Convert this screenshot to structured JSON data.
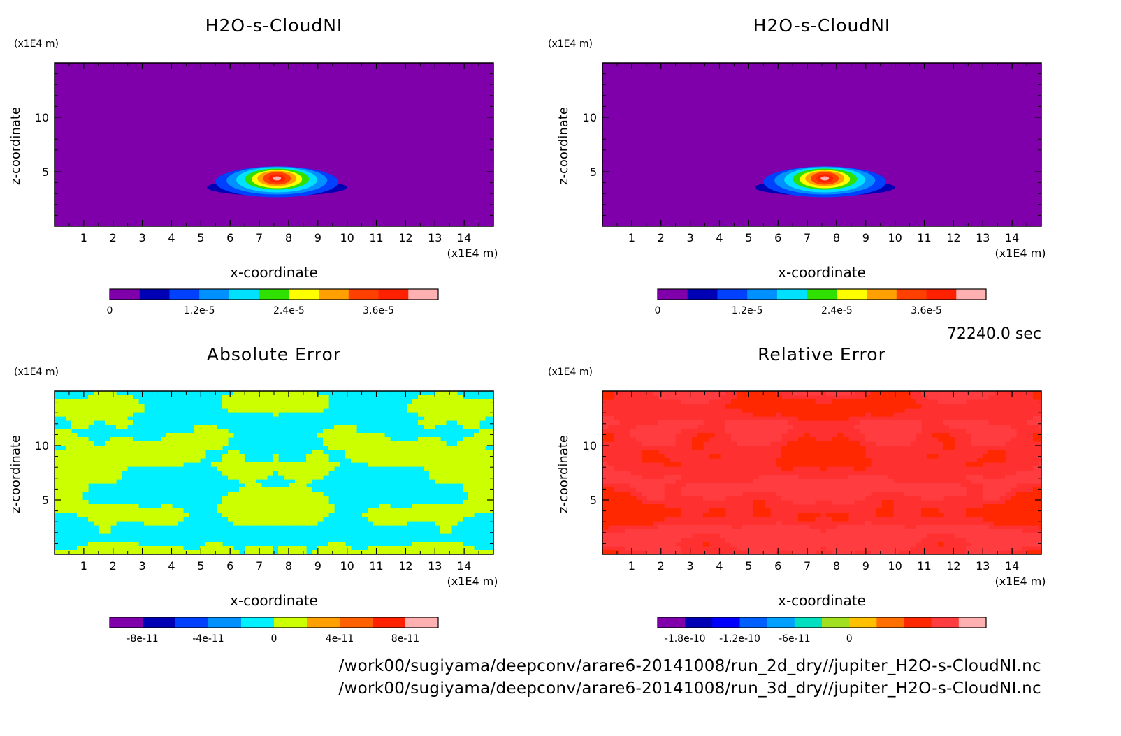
{
  "footer": {
    "file_1": "/work00/sugiyama/deepconv/arare6-20141008/run_2d_dry//jupiter_H2O-s-CloudNI.nc",
    "file_2": "/work00/sugiyama/deepconv/arare6-20141008/run_3d_dry//jupiter_H2O-s-CloudNI.nc"
  },
  "time_label": "72240.0 sec",
  "chart_data": [
    {
      "type": "heatmap",
      "title": "H2O-s-CloudNI",
      "xlabel": "x-coordinate",
      "ylabel": "z-coordinate",
      "x_unit": "(x1E4 m)",
      "y_unit": "(x1E4 m)",
      "xlim": [
        0,
        15
      ],
      "ylim": [
        0,
        15
      ],
      "x_ticks": [
        "1",
        "2",
        "3",
        "4",
        "5",
        "6",
        "7",
        "8",
        "9",
        "10",
        "11",
        "12",
        "13",
        "14"
      ],
      "y_ticks": [
        "5",
        "10"
      ],
      "field": "cloud",
      "blob_center": [
        7.6,
        4.2
      ],
      "max_value": 4.1e-05,
      "colorbar": {
        "colors": [
          "#7f00aa",
          "#0000b4",
          "#0040ff",
          "#0090ff",
          "#00e0ff",
          "#30e000",
          "#ffff00",
          "#ffa000",
          "#ff4000",
          "#ff2000",
          "#ffb0b0"
        ],
        "levels": [
          0,
          4e-06,
          8e-06,
          1.2e-05,
          1.6e-05,
          2e-05,
          2.4e-05,
          2.8e-05,
          3.2e-05,
          3.6e-05,
          4e-05
        ],
        "tick_labels": [
          {
            "v": 0,
            "t": "0"
          },
          {
            "v": 1.2e-05,
            "t": "1.2e-5"
          },
          {
            "v": 2.4e-05,
            "t": "2.4e-5"
          },
          {
            "v": 3.6e-05,
            "t": "3.6e-5"
          }
        ]
      }
    },
    {
      "type": "heatmap",
      "title": "H2O-s-CloudNI",
      "xlabel": "x-coordinate",
      "ylabel": "z-coordinate",
      "x_unit": "(x1E4 m)",
      "y_unit": "(x1E4 m)",
      "xlim": [
        0,
        15
      ],
      "ylim": [
        0,
        15
      ],
      "x_ticks": [
        "1",
        "2",
        "3",
        "4",
        "5",
        "6",
        "7",
        "8",
        "9",
        "10",
        "11",
        "12",
        "13",
        "14"
      ],
      "y_ticks": [
        "5",
        "10"
      ],
      "field": "cloud",
      "blob_center": [
        7.6,
        4.2
      ],
      "max_value": 4.1e-05,
      "colorbar": {
        "colors": [
          "#7f00aa",
          "#0000b4",
          "#0040ff",
          "#0090ff",
          "#00e0ff",
          "#30e000",
          "#ffff00",
          "#ffa000",
          "#ff4000",
          "#ff2000",
          "#ffb0b0"
        ],
        "levels": [
          0,
          4e-06,
          8e-06,
          1.2e-05,
          1.6e-05,
          2e-05,
          2.4e-05,
          2.8e-05,
          3.2e-05,
          3.6e-05,
          4e-05
        ],
        "tick_labels": [
          {
            "v": 0,
            "t": "0"
          },
          {
            "v": 1.2e-05,
            "t": "1.2e-5"
          },
          {
            "v": 2.4e-05,
            "t": "2.4e-5"
          },
          {
            "v": 3.6e-05,
            "t": "3.6e-5"
          }
        ]
      }
    },
    {
      "type": "heatmap",
      "title": "Absolute Error",
      "xlabel": "x-coordinate",
      "ylabel": "z-coordinate",
      "x_unit": "(x1E4 m)",
      "y_unit": "(x1E4 m)",
      "xlim": [
        0,
        15
      ],
      "ylim": [
        0,
        15
      ],
      "x_ticks": [
        "1",
        "2",
        "3",
        "4",
        "5",
        "6",
        "7",
        "8",
        "9",
        "10",
        "11",
        "12",
        "13",
        "14"
      ],
      "y_ticks": [
        "5",
        "10"
      ],
      "field": "abs_error",
      "region_colors": [
        "#00f0ff",
        "#ccff00"
      ],
      "colorbar": {
        "colors": [
          "#7f00aa",
          "#0000b4",
          "#0040ff",
          "#0090ff",
          "#00f0ff",
          "#ccff00",
          "#ffa000",
          "#ff6000",
          "#ff2000",
          "#ffb0b0"
        ],
        "levels": [
          -1e-10,
          -8e-11,
          -6e-11,
          -4e-11,
          -2e-11,
          0,
          2e-11,
          4e-11,
          6e-11,
          8e-11,
          1e-10
        ],
        "tick_labels": [
          {
            "v": -8e-11,
            "t": "-8e-11"
          },
          {
            "v": -4e-11,
            "t": "-4e-11"
          },
          {
            "v": 0,
            "t": "0"
          },
          {
            "v": 4e-11,
            "t": "4e-11"
          },
          {
            "v": 8e-11,
            "t": "8e-11"
          }
        ]
      }
    },
    {
      "type": "heatmap",
      "title": "Relative Error",
      "xlabel": "x-coordinate",
      "ylabel": "z-coordinate",
      "x_unit": "(x1E4 m)",
      "y_unit": "(x1E4 m)",
      "xlim": [
        0,
        15
      ],
      "ylim": [
        0,
        15
      ],
      "x_ticks": [
        "1",
        "2",
        "3",
        "4",
        "5",
        "6",
        "7",
        "8",
        "9",
        "10",
        "11",
        "12",
        "13",
        "14"
      ],
      "y_ticks": [
        "5",
        "10"
      ],
      "field": "rel_error",
      "region_colors": [
        "#ff3030",
        "#ff3c40",
        "#ff2800"
      ],
      "colorbar": {
        "colors": [
          "#7f00aa",
          "#0000b4",
          "#0000ff",
          "#0060ff",
          "#00a0ff",
          "#00e0c0",
          "#a0e020",
          "#ffc000",
          "#ff7000",
          "#ff2800",
          "#ff3c40",
          "#ffb0b0"
        ],
        "levels": [
          -2e-10,
          -1.8e-10,
          -1.5e-10,
          -1.2e-10,
          -9e-11,
          -6e-11,
          -3e-11,
          0,
          3e-11,
          6e-11,
          9e-11,
          1.2e-10,
          1.5e-10
        ],
        "tick_labels": [
          {
            "v": -1.8e-10,
            "t": "-1.8e-10"
          },
          {
            "v": -1.2e-10,
            "t": "-1.2e-10"
          },
          {
            "v": -6e-11,
            "t": "-6e-11"
          },
          {
            "v": 0,
            "t": "0"
          }
        ]
      }
    }
  ]
}
